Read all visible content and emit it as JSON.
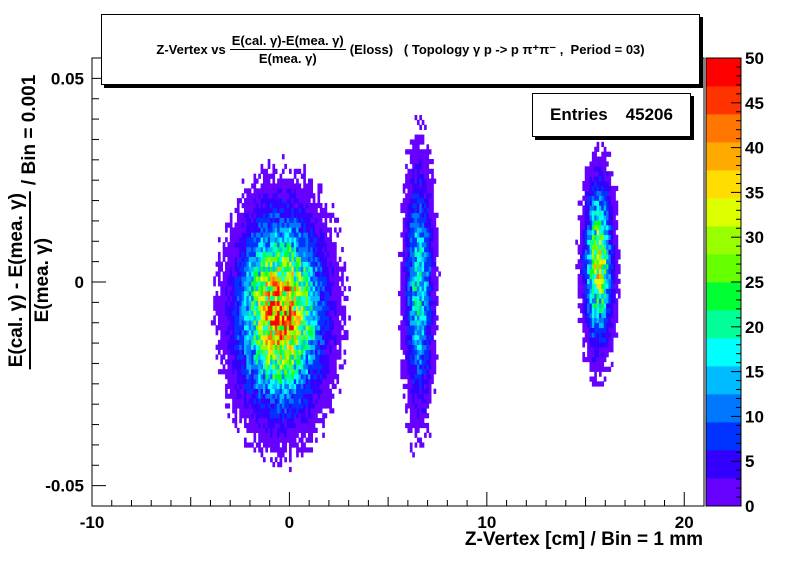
{
  "chart_data": {
    "type": "heatmap",
    "title": {
      "prefix": "Z-Vertex vs",
      "frac_num": "E(cal. γ)-E(mea. γ)",
      "frac_den": "E(mea. γ)",
      "suffix": "(Eloss)   ( Topology γ p -> p π⁺π⁻ ,  Period = 03)"
    },
    "xlabel": "Z-Vertex [cm] / Bin = 1 mm",
    "ylabel": {
      "frac_num": "E(cal. γ) - E(mea. γ)",
      "frac_den": "E(mea. γ)",
      "suffix": "/ Bin = 0.001"
    },
    "stats": {
      "label": "Entries",
      "value": "45206"
    },
    "xlim": [
      -10,
      21
    ],
    "ylim": [
      -0.055,
      0.055
    ],
    "x_ticks": [
      -10,
      0,
      10,
      20
    ],
    "x_tick_labels": [
      "-10",
      "0",
      "10",
      "20"
    ],
    "y_ticks": [
      -0.05,
      0,
      0.05
    ],
    "y_tick_labels": [
      "-0.05",
      "0",
      "0.05"
    ],
    "zlim": [
      0,
      50
    ],
    "z_ticks": [
      0,
      5,
      10,
      15,
      20,
      25,
      30,
      35,
      40,
      45,
      50
    ],
    "z_tick_labels": [
      "0",
      "5",
      "10",
      "15",
      "20",
      "25",
      "30",
      "35",
      "40",
      "45",
      "50"
    ],
    "palette": [
      "#6600ff",
      "#3300ff",
      "#0033ff",
      "#0077ff",
      "#00bbff",
      "#00ffff",
      "#00ff99",
      "#00ff33",
      "#66ff00",
      "#99ff00",
      "#ddff00",
      "#ffdd00",
      "#ffaa00",
      "#ff7700",
      "#ff3300",
      "#ff0000"
    ],
    "clusters": [
      {
        "x_center": -0.5,
        "x_sigma": 1.2,
        "y_center": -0.008,
        "y_sigma": 0.013,
        "peak_count": 40
      },
      {
        "x_center": 6.5,
        "x_sigma": 0.4,
        "y_center": -0.002,
        "y_sigma": 0.016,
        "peak_count": 18
      },
      {
        "x_center": 15.6,
        "x_sigma": 0.4,
        "y_center": 0.004,
        "y_sigma": 0.011,
        "peak_count": 30
      }
    ]
  }
}
